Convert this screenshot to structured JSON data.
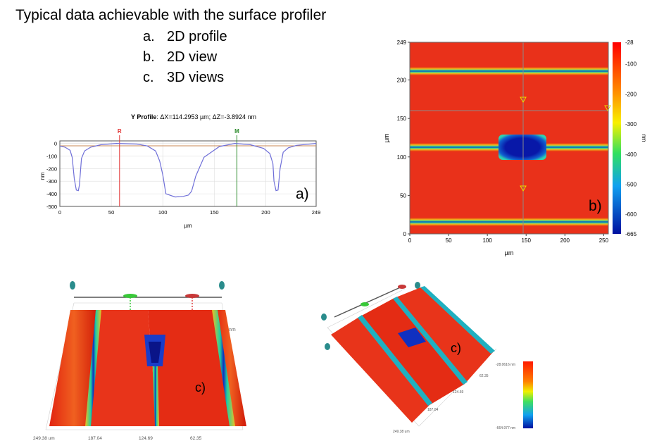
{
  "heading": "Typical data achievable with the surface profiler",
  "list": [
    {
      "marker": "a.",
      "text": "2D profile"
    },
    {
      "marker": "b.",
      "text": "2D view"
    },
    {
      "marker": "c.",
      "text": "3D views"
    }
  ],
  "panel_labels": {
    "a": "a)",
    "b": "b)",
    "c1": "c)",
    "c2": "c)"
  },
  "profile": {
    "title_bold": "Y Profile",
    "title_rest": ": ΔX=114.2953 µm; ΔZ=-3.8924 nm",
    "cursor_r": "R",
    "cursor_m": "M",
    "ylabel": "nm",
    "xlabel": "µm",
    "yticks": [
      "0",
      "-100",
      "-200",
      "-300",
      "-400",
      "-500"
    ],
    "xticks": [
      "0",
      "50",
      "100",
      "150",
      "200",
      "249"
    ]
  },
  "map2d": {
    "ylabel": "µm",
    "xlabel": "µm",
    "yticks": [
      "249",
      "200",
      "150",
      "100",
      "50",
      "0"
    ],
    "xticks": [
      "0",
      "50",
      "100",
      "150",
      "200",
      "250"
    ],
    "colorbar_unit": "nm",
    "colorbar_ticks": [
      "-28",
      "-100",
      "-200",
      "-300",
      "-400",
      "-500",
      "-600",
      "-665"
    ]
  },
  "view3d_1": {
    "axis_ticks": [
      "249.38 um",
      "187.04",
      "124.69",
      "62.35"
    ],
    "side_unit": "nm"
  },
  "view3d_2": {
    "scale_max": "-28.0616 nm",
    "scale_min": "-664.977 nm",
    "axis_ticks": [
      "62.35",
      "124.69",
      "187.04",
      "249.38 um"
    ]
  },
  "chart_data": {
    "type": "line",
    "title": "Y Profile: ΔX=114.2953 µm; ΔZ=-3.8924 nm",
    "xlabel": "µm",
    "ylabel": "nm",
    "xlim": [
      0,
      249
    ],
    "ylim": [
      -500,
      20
    ],
    "series": [
      {
        "name": "Y Profile",
        "x": [
          0,
          5,
          10,
          12,
          14,
          16,
          18,
          19,
          21,
          24,
          30,
          40,
          55,
          75,
          85,
          93,
          97,
          100,
          103,
          112,
          120,
          125,
          128,
          132,
          140,
          155,
          170,
          185,
          198,
          204,
          207,
          208,
          210,
          212,
          214,
          217,
          222,
          230,
          249
        ],
        "y": [
          -20,
          -30,
          -55,
          -110,
          -280,
          -370,
          -375,
          -330,
          -120,
          -60,
          -30,
          -10,
          0,
          -5,
          -20,
          -60,
          -140,
          -250,
          -400,
          -425,
          -420,
          -410,
          -380,
          -260,
          -110,
          -25,
          0,
          -10,
          -40,
          -80,
          -160,
          -300,
          -375,
          -370,
          -200,
          -70,
          -35,
          -15,
          0
        ]
      }
    ],
    "cursors": [
      {
        "name": "R",
        "x": 58
      },
      {
        "name": "M",
        "x": 172
      }
    ]
  }
}
